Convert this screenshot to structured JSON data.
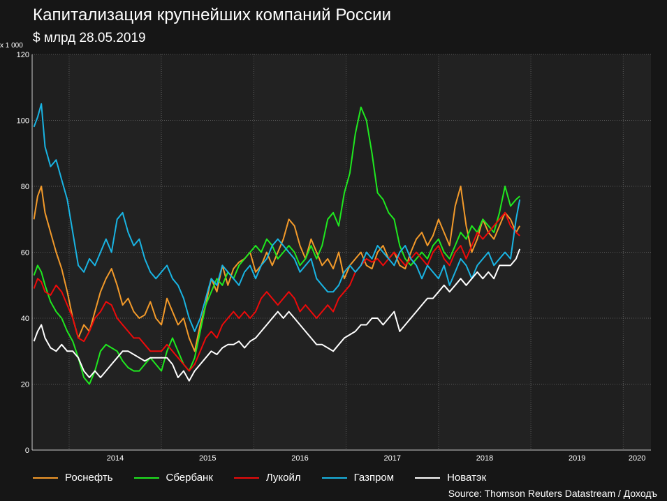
{
  "title": "Капитализация крупнейших компаний России",
  "subtitle": "$ млрд 28.05.2019",
  "unit_label": "x 1 000",
  "source": "Source: Thomson Reuters Datastream / Доходъ",
  "chart_data": {
    "type": "line",
    "title": "Капитализация крупнейших компаний России",
    "ylim": [
      0,
      120
    ],
    "yticks": [
      0,
      20,
      40,
      60,
      80,
      100,
      120
    ],
    "xlim": [
      2013.6,
      2020.3
    ],
    "xtick_labels": [
      "2014",
      "2015",
      "2016",
      "2017",
      "2018",
      "2019",
      "2020"
    ],
    "grid": true,
    "legend_position": "bottom",
    "series": [
      {
        "name": "Роснефть",
        "color": "#f39a2a",
        "x": [
          2013.62,
          2013.66,
          2013.7,
          2013.74,
          2013.8,
          2013.86,
          2013.92,
          2013.98,
          2014.04,
          2014.1,
          2014.16,
          2014.22,
          2014.28,
          2014.34,
          2014.4,
          2014.46,
          2014.52,
          2014.58,
          2014.64,
          2014.7,
          2014.76,
          2014.82,
          2014.88,
          2014.94,
          2015.0,
          2015.06,
          2015.12,
          2015.18,
          2015.24,
          2015.3,
          2015.36,
          2015.42,
          2015.48,
          2015.54,
          2015.6,
          2015.66,
          2015.72,
          2015.78,
          2015.84,
          2015.9,
          2015.96,
          2016.02,
          2016.08,
          2016.14,
          2016.2,
          2016.26,
          2016.32,
          2016.38,
          2016.44,
          2016.5,
          2016.56,
          2016.62,
          2016.68,
          2016.74,
          2016.8,
          2016.86,
          2016.92,
          2016.98,
          2017.04,
          2017.1,
          2017.16,
          2017.22,
          2017.28,
          2017.34,
          2017.4,
          2017.46,
          2017.52,
          2017.58,
          2017.64,
          2017.7,
          2017.76,
          2017.82,
          2017.88,
          2017.94,
          2018.0,
          2018.06,
          2018.12,
          2018.18,
          2018.24,
          2018.3,
          2018.36,
          2018.42,
          2018.48,
          2018.54,
          2018.6,
          2018.66,
          2018.72,
          2018.78,
          2018.84,
          2018.88
        ],
        "values": [
          70,
          77,
          80,
          72,
          66,
          60,
          55,
          48,
          40,
          34,
          38,
          36,
          42,
          48,
          52,
          55,
          50,
          44,
          46,
          42,
          40,
          41,
          45,
          40,
          38,
          46,
          42,
          38,
          40,
          34,
          30,
          38,
          44,
          52,
          48,
          56,
          50,
          55,
          57,
          58,
          60,
          54,
          56,
          60,
          56,
          60,
          64,
          70,
          68,
          62,
          58,
          64,
          60,
          56,
          58,
          55,
          60,
          52,
          56,
          58,
          60,
          56,
          55,
          60,
          62,
          58,
          60,
          56,
          55,
          60,
          64,
          66,
          62,
          65,
          70,
          66,
          62,
          74,
          80,
          68,
          60,
          64,
          70,
          66,
          64,
          68,
          72,
          70,
          66,
          68
        ]
      },
      {
        "name": "Сбербанк",
        "color": "#1fe81f",
        "x": [
          2013.62,
          2013.66,
          2013.7,
          2013.74,
          2013.8,
          2013.86,
          2013.92,
          2013.98,
          2014.04,
          2014.1,
          2014.16,
          2014.22,
          2014.28,
          2014.34,
          2014.4,
          2014.46,
          2014.52,
          2014.58,
          2014.64,
          2014.7,
          2014.76,
          2014.82,
          2014.88,
          2014.94,
          2015.0,
          2015.06,
          2015.12,
          2015.18,
          2015.24,
          2015.3,
          2015.36,
          2015.42,
          2015.48,
          2015.54,
          2015.6,
          2015.66,
          2015.72,
          2015.78,
          2015.84,
          2015.9,
          2015.96,
          2016.02,
          2016.08,
          2016.14,
          2016.2,
          2016.26,
          2016.32,
          2016.38,
          2016.44,
          2016.5,
          2016.56,
          2016.62,
          2016.68,
          2016.74,
          2016.8,
          2016.86,
          2016.92,
          2016.98,
          2017.04,
          2017.1,
          2017.16,
          2017.22,
          2017.28,
          2017.34,
          2017.4,
          2017.46,
          2017.52,
          2017.58,
          2017.64,
          2017.7,
          2017.76,
          2017.82,
          2017.88,
          2017.94,
          2018.0,
          2018.06,
          2018.12,
          2018.18,
          2018.24,
          2018.3,
          2018.36,
          2018.42,
          2018.48,
          2018.54,
          2018.6,
          2018.66,
          2018.72,
          2018.78,
          2018.84,
          2018.88
        ],
        "values": [
          53,
          56,
          54,
          50,
          45,
          42,
          40,
          36,
          33,
          28,
          22,
          20,
          24,
          30,
          32,
          31,
          30,
          27,
          25,
          24,
          24,
          26,
          28,
          26,
          24,
          30,
          34,
          30,
          26,
          24,
          28,
          36,
          44,
          48,
          52,
          50,
          54,
          52,
          56,
          58,
          60,
          62,
          60,
          64,
          62,
          58,
          60,
          62,
          60,
          56,
          58,
          62,
          58,
          62,
          70,
          72,
          68,
          78,
          84,
          96,
          104,
          100,
          90,
          78,
          76,
          72,
          70,
          62,
          58,
          56,
          58,
          60,
          58,
          62,
          64,
          60,
          58,
          62,
          66,
          64,
          68,
          66,
          70,
          68,
          66,
          72,
          80,
          74,
          76,
          77
        ]
      },
      {
        "name": "Лукойл",
        "color": "#ee0a0a",
        "x": [
          2013.62,
          2013.66,
          2013.7,
          2013.74,
          2013.8,
          2013.86,
          2013.92,
          2013.98,
          2014.04,
          2014.1,
          2014.16,
          2014.22,
          2014.28,
          2014.34,
          2014.4,
          2014.46,
          2014.52,
          2014.58,
          2014.64,
          2014.7,
          2014.76,
          2014.82,
          2014.88,
          2014.94,
          2015.0,
          2015.06,
          2015.12,
          2015.18,
          2015.24,
          2015.3,
          2015.36,
          2015.42,
          2015.48,
          2015.54,
          2015.6,
          2015.66,
          2015.72,
          2015.78,
          2015.84,
          2015.9,
          2015.96,
          2016.02,
          2016.08,
          2016.14,
          2016.2,
          2016.26,
          2016.32,
          2016.38,
          2016.44,
          2016.5,
          2016.56,
          2016.62,
          2016.68,
          2016.74,
          2016.8,
          2016.86,
          2016.92,
          2016.98,
          2017.04,
          2017.1,
          2017.16,
          2017.22,
          2017.28,
          2017.34,
          2017.4,
          2017.46,
          2017.52,
          2017.58,
          2017.64,
          2017.7,
          2017.76,
          2017.82,
          2017.88,
          2017.94,
          2018.0,
          2018.06,
          2018.12,
          2018.18,
          2018.24,
          2018.3,
          2018.36,
          2018.42,
          2018.48,
          2018.54,
          2018.6,
          2018.66,
          2018.72,
          2018.78,
          2018.84,
          2018.88
        ],
        "values": [
          49,
          52,
          51,
          48,
          47,
          50,
          48,
          44,
          40,
          34,
          33,
          36,
          40,
          42,
          45,
          44,
          40,
          38,
          36,
          34,
          34,
          32,
          30,
          30,
          30,
          32,
          30,
          28,
          26,
          24,
          26,
          30,
          34,
          36,
          34,
          38,
          40,
          42,
          40,
          42,
          40,
          42,
          46,
          48,
          46,
          44,
          46,
          48,
          46,
          42,
          44,
          42,
          40,
          42,
          44,
          42,
          46,
          48,
          50,
          54,
          56,
          58,
          57,
          58,
          56,
          58,
          60,
          58,
          56,
          58,
          60,
          58,
          56,
          60,
          62,
          58,
          56,
          60,
          62,
          58,
          62,
          66,
          64,
          66,
          68,
          70,
          72,
          68,
          66,
          65
        ]
      },
      {
        "name": "Газпром",
        "color": "#19b4e3",
        "x": [
          2013.62,
          2013.66,
          2013.7,
          2013.74,
          2013.8,
          2013.86,
          2013.92,
          2013.98,
          2014.04,
          2014.1,
          2014.16,
          2014.22,
          2014.28,
          2014.34,
          2014.4,
          2014.46,
          2014.52,
          2014.58,
          2014.64,
          2014.7,
          2014.76,
          2014.82,
          2014.88,
          2014.94,
          2015.0,
          2015.06,
          2015.12,
          2015.18,
          2015.24,
          2015.3,
          2015.36,
          2015.42,
          2015.48,
          2015.54,
          2015.6,
          2015.66,
          2015.72,
          2015.78,
          2015.84,
          2015.9,
          2015.96,
          2016.02,
          2016.08,
          2016.14,
          2016.2,
          2016.26,
          2016.32,
          2016.38,
          2016.44,
          2016.5,
          2016.56,
          2016.62,
          2016.68,
          2016.74,
          2016.8,
          2016.86,
          2016.92,
          2016.98,
          2017.04,
          2017.1,
          2017.16,
          2017.22,
          2017.28,
          2017.34,
          2017.4,
          2017.46,
          2017.52,
          2017.58,
          2017.64,
          2017.7,
          2017.76,
          2017.82,
          2017.88,
          2017.94,
          2018.0,
          2018.06,
          2018.12,
          2018.18,
          2018.24,
          2018.3,
          2018.36,
          2018.42,
          2018.48,
          2018.54,
          2018.6,
          2018.66,
          2018.72,
          2018.78,
          2018.84,
          2018.88
        ],
        "values": [
          98,
          101,
          105,
          92,
          86,
          88,
          82,
          76,
          66,
          56,
          54,
          58,
          56,
          60,
          64,
          60,
          70,
          72,
          66,
          62,
          64,
          58,
          54,
          52,
          54,
          56,
          52,
          50,
          46,
          40,
          36,
          40,
          46,
          52,
          50,
          56,
          54,
          52,
          50,
          54,
          56,
          52,
          56,
          58,
          62,
          64,
          62,
          60,
          58,
          54,
          56,
          58,
          52,
          50,
          48,
          48,
          50,
          54,
          56,
          54,
          56,
          60,
          58,
          62,
          60,
          58,
          56,
          60,
          62,
          58,
          56,
          52,
          56,
          54,
          52,
          56,
          50,
          54,
          58,
          56,
          52,
          56,
          58,
          60,
          56,
          58,
          60,
          58,
          70,
          76
        ]
      },
      {
        "name": "Новатэк",
        "color": "#ffffff",
        "x": [
          2013.62,
          2013.66,
          2013.7,
          2013.74,
          2013.8,
          2013.86,
          2013.92,
          2013.98,
          2014.04,
          2014.1,
          2014.16,
          2014.22,
          2014.28,
          2014.34,
          2014.4,
          2014.46,
          2014.52,
          2014.58,
          2014.64,
          2014.7,
          2014.76,
          2014.82,
          2014.88,
          2014.94,
          2015.0,
          2015.06,
          2015.12,
          2015.18,
          2015.24,
          2015.3,
          2015.36,
          2015.42,
          2015.48,
          2015.54,
          2015.6,
          2015.66,
          2015.72,
          2015.78,
          2015.84,
          2015.9,
          2015.96,
          2016.02,
          2016.08,
          2016.14,
          2016.2,
          2016.26,
          2016.32,
          2016.38,
          2016.44,
          2016.5,
          2016.56,
          2016.62,
          2016.68,
          2016.74,
          2016.8,
          2016.86,
          2016.92,
          2016.98,
          2017.04,
          2017.1,
          2017.16,
          2017.22,
          2017.28,
          2017.34,
          2017.4,
          2017.46,
          2017.52,
          2017.58,
          2017.64,
          2017.7,
          2017.76,
          2017.82,
          2017.88,
          2017.94,
          2018.0,
          2018.06,
          2018.12,
          2018.18,
          2018.24,
          2018.3,
          2018.36,
          2018.42,
          2018.48,
          2018.54,
          2018.6,
          2018.66,
          2018.72,
          2018.78,
          2018.84,
          2018.88
        ],
        "values": [
          33,
          36,
          38,
          34,
          31,
          30,
          32,
          30,
          30,
          28,
          24,
          22,
          24,
          22,
          24,
          26,
          28,
          30,
          30,
          29,
          28,
          27,
          28,
          28,
          28,
          28,
          26,
          22,
          24,
          21,
          24,
          26,
          28,
          30,
          29,
          31,
          32,
          32,
          33,
          31,
          33,
          34,
          36,
          38,
          40,
          42,
          40,
          42,
          40,
          38,
          36,
          34,
          32,
          32,
          31,
          30,
          32,
          34,
          35,
          36,
          38,
          38,
          40,
          40,
          38,
          40,
          42,
          36,
          38,
          40,
          42,
          44,
          46,
          46,
          48,
          50,
          48,
          50,
          52,
          50,
          52,
          54,
          52,
          54,
          52,
          56,
          56,
          56,
          58,
          61
        ]
      }
    ]
  }
}
